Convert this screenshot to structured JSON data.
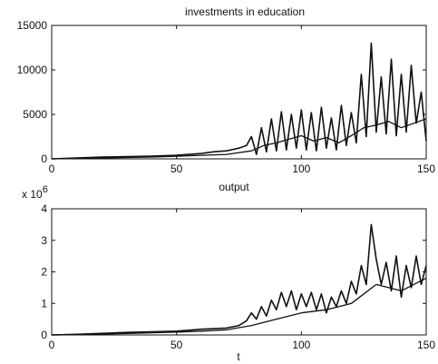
{
  "chart_data": [
    {
      "type": "line",
      "title": "investments in education",
      "xlabel": "",
      "ylabel": "",
      "xlim": [
        0,
        150
      ],
      "ylim": [
        0,
        15000
      ],
      "x_ticks": [
        "0",
        "50",
        "100",
        "150"
      ],
      "y_ticks": [
        "0",
        "5000",
        "10000",
        "15000"
      ],
      "grid": false,
      "legend": "none",
      "series": [
        {
          "x": [
            0,
            10,
            20,
            30,
            40,
            50,
            60,
            65,
            70,
            75,
            78,
            80,
            82,
            84,
            86,
            88,
            90,
            92,
            94,
            96,
            98,
            100,
            102,
            104,
            106,
            108,
            110,
            112,
            114,
            116,
            118,
            120,
            122,
            124,
            126,
            128,
            130,
            132,
            134,
            136,
            138,
            140,
            142,
            144,
            146,
            148,
            150
          ],
          "values": [
            0,
            100,
            200,
            250,
            300,
            400,
            600,
            800,
            900,
            1200,
            1500,
            2500,
            500,
            3500,
            800,
            4500,
            900,
            5300,
            1000,
            5000,
            1200,
            5500,
            1000,
            5200,
            900,
            5800,
            1200,
            4600,
            1000,
            6000,
            1500,
            5200,
            1800,
            9500,
            2500,
            13000,
            3000,
            9200,
            2800,
            11200,
            2600,
            9500,
            3000,
            10500,
            4000,
            7500,
            2000
          ]
        },
        {
          "x": [
            0,
            10,
            20,
            30,
            40,
            50,
            60,
            70,
            80,
            85,
            90,
            95,
            100,
            105,
            110,
            115,
            120,
            125,
            130,
            135,
            140,
            145,
            150
          ],
          "values": [
            0,
            50,
            100,
            150,
            200,
            300,
            400,
            500,
            900,
            1500,
            1800,
            2200,
            2600,
            2000,
            2400,
            1800,
            2600,
            3500,
            3800,
            4200,
            3500,
            4000,
            4500
          ]
        }
      ]
    },
    {
      "type": "line",
      "title": "output",
      "xlabel": "t",
      "ylabel": "",
      "y_multiplier": "x 10",
      "y_exponent": "6",
      "xlim": [
        0,
        150
      ],
      "ylim": [
        0,
        4
      ],
      "x_ticks": [
        "0",
        "50",
        "100",
        "150"
      ],
      "y_ticks": [
        "0",
        "1",
        "2",
        "3",
        "4"
      ],
      "grid": false,
      "legend": "none",
      "series": [
        {
          "x": [
            0,
            10,
            20,
            30,
            40,
            50,
            55,
            60,
            65,
            70,
            75,
            78,
            80,
            82,
            84,
            86,
            88,
            90,
            92,
            94,
            96,
            98,
            100,
            102,
            104,
            106,
            108,
            110,
            112,
            114,
            116,
            118,
            120,
            122,
            124,
            126,
            128,
            130,
            132,
            134,
            136,
            138,
            140,
            142,
            144,
            146,
            148,
            150
          ],
          "values": [
            0,
            0.02,
            0.05,
            0.08,
            0.1,
            0.12,
            0.15,
            0.18,
            0.2,
            0.22,
            0.3,
            0.45,
            0.7,
            0.5,
            0.9,
            0.6,
            1.1,
            0.8,
            1.35,
            0.9,
            1.4,
            0.8,
            1.3,
            0.9,
            1.35,
            0.8,
            1.3,
            0.7,
            1.2,
            0.9,
            1.4,
            1.0,
            1.7,
            1.3,
            2.2,
            1.6,
            3.5,
            2.4,
            1.6,
            2.3,
            1.4,
            2.5,
            1.2,
            2.2,
            1.5,
            2.5,
            1.6,
            2.2
          ]
        },
        {
          "x": [
            0,
            10,
            20,
            30,
            40,
            50,
            60,
            70,
            80,
            90,
            100,
            110,
            120,
            125,
            130,
            135,
            140,
            145,
            150
          ],
          "values": [
            0,
            0.01,
            0.03,
            0.05,
            0.07,
            0.09,
            0.12,
            0.16,
            0.3,
            0.5,
            0.7,
            0.8,
            1.0,
            1.3,
            1.6,
            1.5,
            1.4,
            1.6,
            1.8
          ]
        }
      ]
    }
  ]
}
